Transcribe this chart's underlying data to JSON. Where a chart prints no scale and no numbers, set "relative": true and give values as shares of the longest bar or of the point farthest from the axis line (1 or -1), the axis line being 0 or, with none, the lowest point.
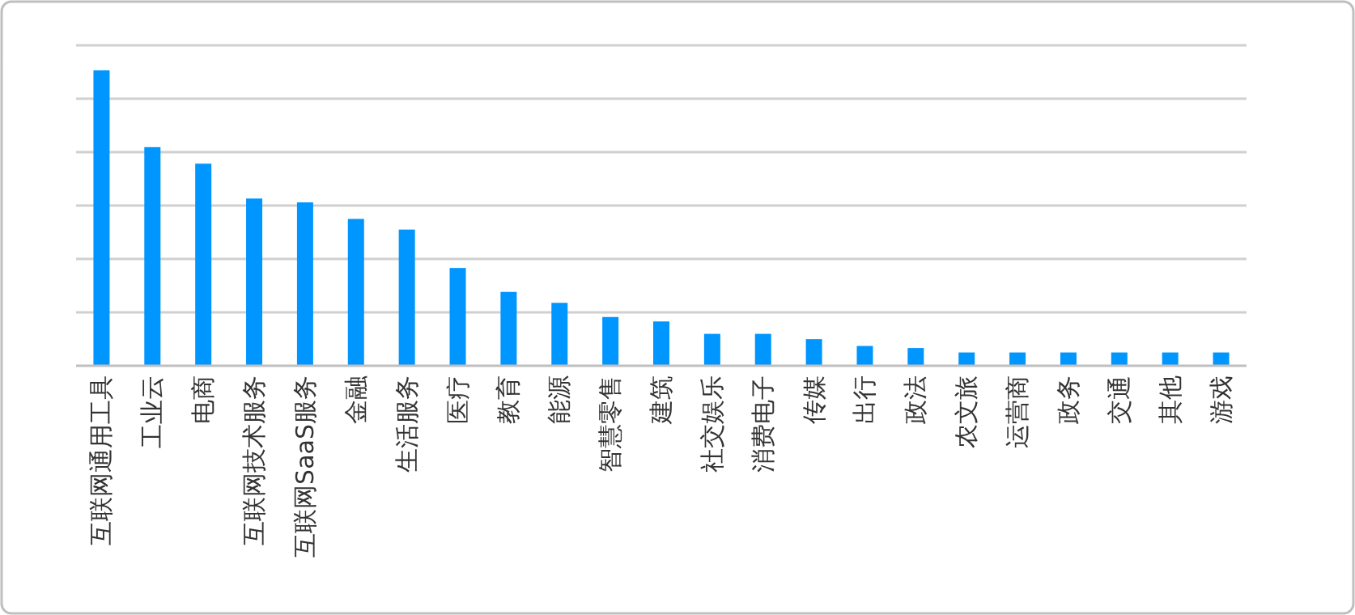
{
  "chart_data": {
    "type": "bar",
    "relative": true,
    "grid": "y",
    "color": "#0096ff",
    "categories": [
      "互联网通用工具",
      "工业云",
      "电商",
      "互联网技术服务",
      "互联网SaaS服务",
      "金融",
      "生活服务",
      "医疗",
      "教育",
      "能源",
      "智慧零售",
      "建筑",
      "社交娱乐",
      "消费电子",
      "传媒",
      "出行",
      "政法",
      "农文旅",
      "运营商",
      "政务",
      "交通",
      "其他",
      "游戏"
    ],
    "values": [
      1,
      0.74,
      0.684,
      0.566,
      0.553,
      0.497,
      0.461,
      0.331,
      0.25,
      0.213,
      0.165,
      0.15,
      0.108,
      0.108,
      0.09,
      0.067,
      0.06,
      0.045,
      0.045,
      0.045,
      0.045,
      0.045,
      0.045
    ]
  }
}
